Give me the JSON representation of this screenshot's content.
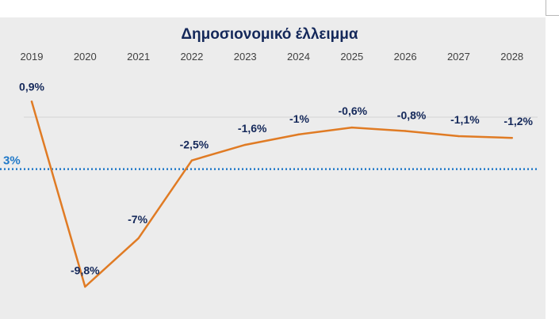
{
  "chart_data": {
    "type": "line",
    "title": "Δημοσιονομικό έλλειμμα",
    "categories": [
      "2019",
      "2020",
      "2021",
      "2022",
      "2023",
      "2024",
      "2025",
      "2026",
      "2027",
      "2028"
    ],
    "series": [
      {
        "values": [
          0.9,
          -9.8,
          -7,
          -2.5,
          -1.6,
          -1,
          -0.6,
          -0.8,
          -1.1,
          -1.2
        ],
        "labels": [
          "0,9%",
          "-9,8%",
          "-7%",
          "-2,5%",
          "-1,6%",
          "-1%",
          "-0,6%",
          "-0,8%",
          "-1,1%",
          "-1,2%"
        ],
        "color": "#e07b24"
      }
    ],
    "reference_line": {
      "value": -3,
      "label": "3%",
      "color": "#1f78c8",
      "style": "dotted"
    },
    "zero_line": {
      "value": 0,
      "color": "#d4d4d4"
    },
    "ylim": [
      -10.2,
      1.6
    ],
    "xlabel": "",
    "ylabel": "",
    "grid": false,
    "legend": "none"
  }
}
